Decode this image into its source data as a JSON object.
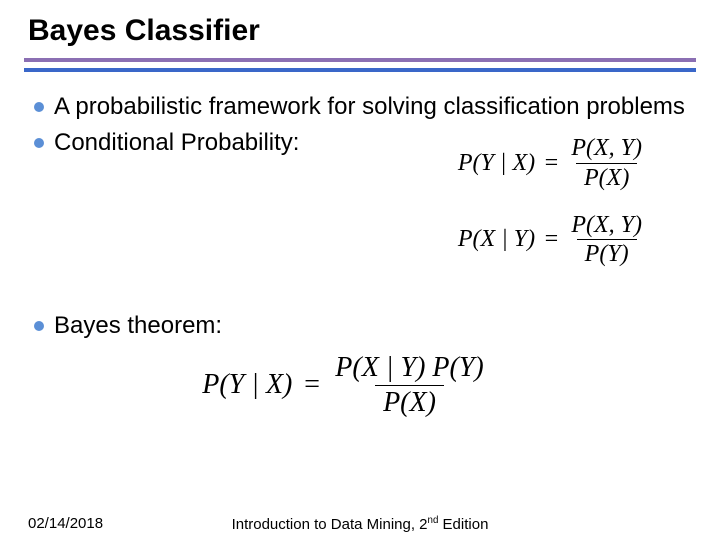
{
  "title": "Bayes Classifier",
  "rules": {
    "top_color": "#8b6fb3",
    "bottom_color": "#3a67c9"
  },
  "bullet_color": "#5b8fd6",
  "bullets": {
    "b1": "A probabilistic framework for solving classification problems",
    "b2": "Conditional Probability:",
    "b3": "Bayes theorem:"
  },
  "formulas": {
    "cond1": {
      "lhs": "P(Y | X)",
      "num": "P(X, Y)",
      "den": "P(X)"
    },
    "cond2": {
      "lhs": "P(X | Y)",
      "num": "P(X, Y)",
      "den": "P(Y)"
    },
    "bayes": {
      "lhs": "P(Y | X)",
      "num": "P(X | Y) P(Y)",
      "den": "P(X)"
    }
  },
  "footer": {
    "date": "02/14/2018",
    "book": "Introduction to Data Mining, 2",
    "edition_suffix": "nd",
    "edition_word": " Edition"
  }
}
